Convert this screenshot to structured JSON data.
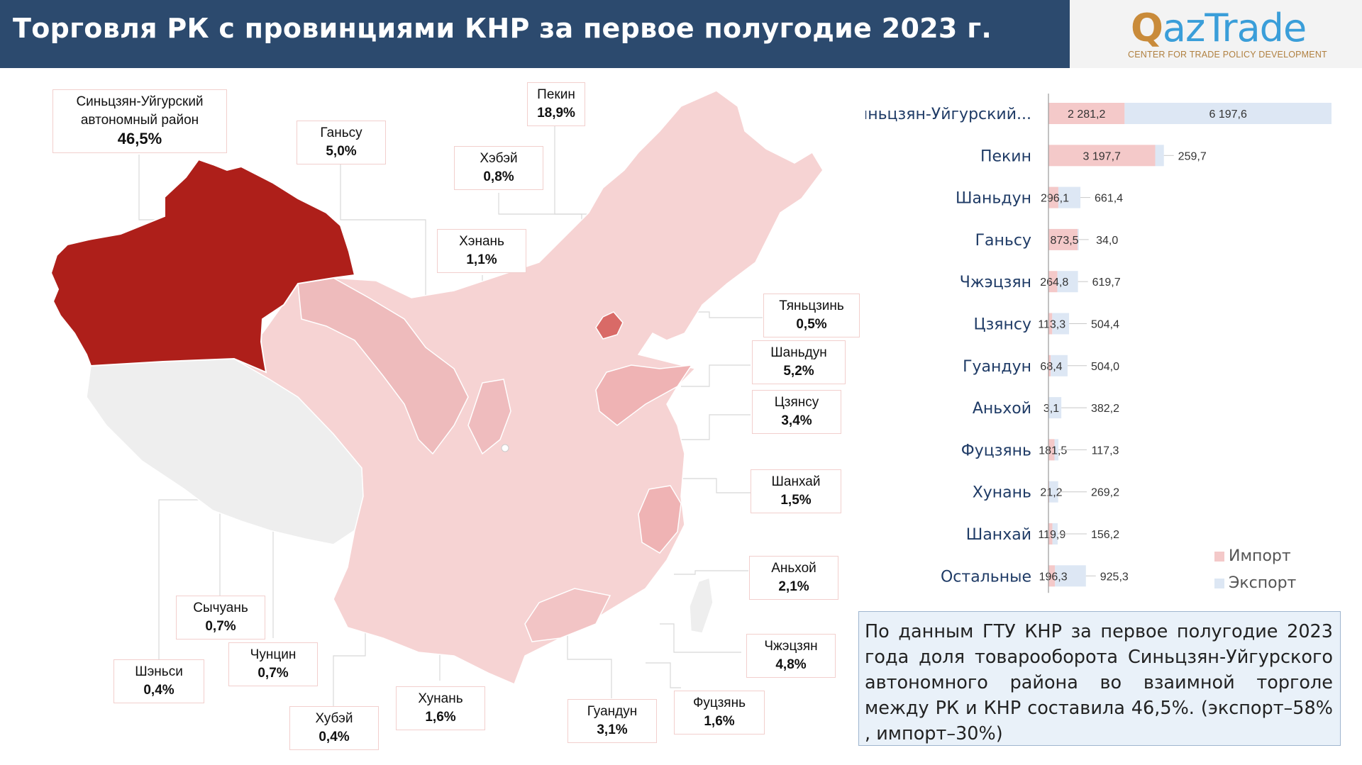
{
  "header": {
    "title": "Торговля РК с провинциями КНР за первое полугодие 2023 г."
  },
  "logo": {
    "brand_q": "Q",
    "brand_rest": "azTrade",
    "subtitle": "CENTER FOR TRADE POLICY DEVELOPMENT"
  },
  "map": {
    "labels": [
      {
        "name": "Синьцзян-Уйгурский\nавтономный район",
        "value": "46,5%"
      },
      {
        "name": "Ганьсу",
        "value": "5,0%"
      },
      {
        "name": "Пекин",
        "value": "18,9%"
      },
      {
        "name": "Хэбэй",
        "value": "0,8%"
      },
      {
        "name": "Хэнань",
        "value": "1,1%"
      },
      {
        "name": "Тяньцзинь",
        "value": "0,5%"
      },
      {
        "name": "Шаньдун",
        "value": "5,2%"
      },
      {
        "name": "Цзянсу",
        "value": "3,4%"
      },
      {
        "name": "Шанхай",
        "value": "1,5%"
      },
      {
        "name": "Аньхой",
        "value": "2,1%"
      },
      {
        "name": "Чжэцзян",
        "value": "4,8%"
      },
      {
        "name": "Фуцзянь",
        "value": "1,6%"
      },
      {
        "name": "Гуандун",
        "value": "3,1%"
      },
      {
        "name": "Хунань",
        "value": "1,6%"
      },
      {
        "name": "Хубэй",
        "value": "0,4%"
      },
      {
        "name": "Чунцин",
        "value": "0,7%"
      },
      {
        "name": "Сычуань",
        "value": "0,7%"
      },
      {
        "name": "Шэньси",
        "value": "0,4%"
      }
    ]
  },
  "chart_data": {
    "type": "bar",
    "categories": [
      "Синьцзян-Уйгурский...",
      "Пекин",
      "Шаньдун",
      "Ганьсу",
      "Чжэцзян",
      "Цзянсу",
      "Гуандун",
      "Аньхой",
      "Фуцзянь",
      "Хунань",
      "Шанхай",
      "Остальные"
    ],
    "series": [
      {
        "name": "Импорт",
        "color": "#f4c9c9",
        "values": [
          2281.2,
          3197.7,
          296.1,
          873.5,
          264.8,
          113.3,
          68.4,
          3.1,
          181.5,
          21.2,
          119.9,
          196.3
        ],
        "labels": [
          "2 281,2",
          "3 197,7",
          "296,1",
          "873,5",
          "264,8",
          "113,3",
          "68,4",
          "3,1",
          "181,5",
          "21,2",
          "119,9",
          "196,3"
        ]
      },
      {
        "name": "Экспорт",
        "color": "#dde7f4",
        "values": [
          6197.6,
          259.7,
          661.4,
          34.0,
          619.7,
          504.4,
          504.0,
          382.2,
          117.3,
          269.2,
          156.2,
          925.3
        ],
        "labels": [
          "6 197,6",
          "259,7",
          "661,4",
          "34,0",
          "619,7",
          "504,4",
          "504,0",
          "382,2",
          "117,3",
          "269,2",
          "156,2",
          "925,3"
        ]
      }
    ],
    "stacked": true,
    "orientation": "horizontal",
    "legend": "bottom-right",
    "xlim": [
      0,
      8500
    ]
  },
  "note": {
    "text": "По данным ГТУ КНР за первое полугодие 2023 года доля товарооборота Синьцзян-Уйгурского автономного района во взаимной торголе между РК и КНР составила 46,5%. (экспорт–58% , импорт–30%)"
  }
}
